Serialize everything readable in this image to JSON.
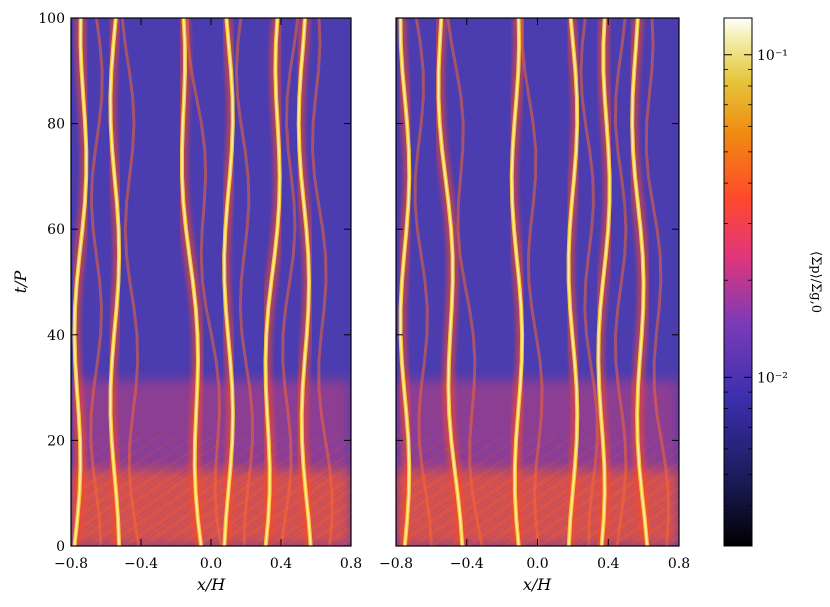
{
  "chart_data": [
    {
      "type": "heatmap",
      "panel": "left",
      "xlabel": "x/H",
      "ylabel": "t/P",
      "xlim": [
        -0.8,
        0.8
      ],
      "ylim": [
        0,
        100
      ],
      "xticks": [
        -0.8,
        -0.4,
        0.0,
        0.4,
        0.8
      ],
      "xtick_labels": [
        "−0.8",
        "−0.4",
        "0.0",
        "0.4",
        "0.8"
      ],
      "yticks": [
        0,
        20,
        40,
        60,
        80,
        100
      ],
      "ytick_labels": [
        "0",
        "20",
        "40",
        "60",
        "80",
        "100"
      ],
      "colormap": "CMRmap",
      "colorbar": "shared",
      "description_filaments": [
        {
          "x_at_t0": -0.78,
          "x_at_t100": -0.72
        },
        {
          "x_at_t0": -0.55,
          "x_at_t100": -0.55
        },
        {
          "x_at_t0": -0.05,
          "x_at_t100": -0.18
        },
        {
          "x_at_t0": 0.1,
          "x_at_t100": 0.1
        },
        {
          "x_at_t0": 0.3,
          "x_at_t100": 0.4
        },
        {
          "x_at_t0": 0.55,
          "x_at_t100": 0.52
        }
      ]
    },
    {
      "type": "heatmap",
      "panel": "right",
      "xlabel": "x/H",
      "ylabel": "",
      "xlim": [
        -0.8,
        0.8
      ],
      "ylim": [
        0,
        100
      ],
      "xticks": [
        -0.8,
        -0.4,
        0.0,
        0.4,
        0.8
      ],
      "xtick_labels": [
        "−0.8",
        "−0.4",
        "0.0",
        "0.4",
        "0.8"
      ],
      "yticks": [
        0,
        20,
        40,
        60,
        80,
        100
      ],
      "colormap": "CMRmap",
      "colorbar": "shared",
      "description_filaments": [
        {
          "x_at_t0": -0.75,
          "x_at_t100": -0.75
        },
        {
          "x_at_t0": -0.45,
          "x_at_t100": -0.55
        },
        {
          "x_at_t0": -0.1,
          "x_at_t100": -0.13
        },
        {
          "x_at_t0": 0.2,
          "x_at_t100": 0.2
        },
        {
          "x_at_t0": 0.35,
          "x_at_t100": 0.4
        },
        {
          "x_at_t0": 0.6,
          "x_at_t100": 0.55
        }
      ]
    }
  ],
  "colorbar": {
    "label": "⟨Σp⟩/Σg,0",
    "scale": "log",
    "range": [
      0.003,
      0.13
    ],
    "ticks": [
      0.01,
      0.1
    ],
    "tick_labels": [
      "10⁻²",
      "10⁻¹"
    ]
  }
}
